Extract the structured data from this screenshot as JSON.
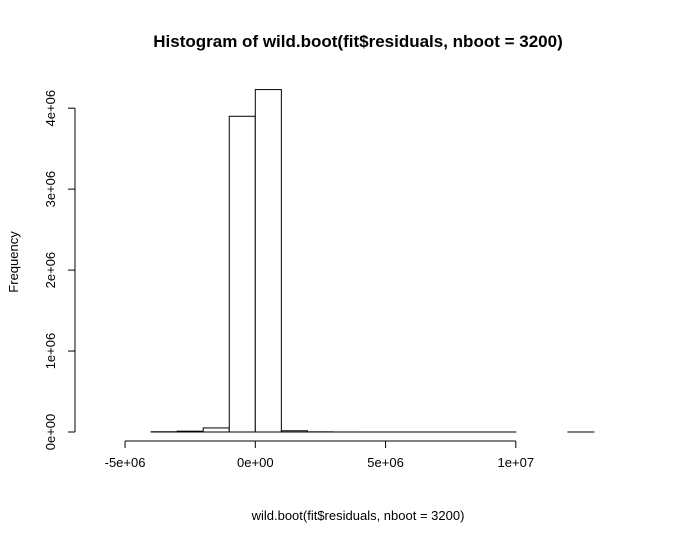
{
  "chart_data": {
    "type": "bar",
    "title": "Histogram of wild.boot(fit$residuals, nboot = 3200)",
    "xlabel": "wild.boot(fit$residuals, nboot = 3200)",
    "ylabel": "Frequency",
    "xlim": [
      -6000000,
      14000000
    ],
    "ylim": [
      0,
      4200000
    ],
    "bin_width": 1000000,
    "bin_starts": [
      -4000000,
      -3000000,
      -2000000,
      -1000000,
      0,
      1000000,
      2000000,
      3000000,
      4000000,
      5000000,
      6000000,
      7000000,
      8000000,
      9000000,
      10000000,
      11000000,
      12000000
    ],
    "values": [
      3000,
      10000,
      50000,
      3900000,
      4230000,
      15000,
      2000,
      200,
      50,
      10,
      5,
      2,
      1,
      1,
      0,
      0,
      1
    ],
    "x_ticks": [
      -5000000,
      0,
      5000000,
      10000000
    ],
    "x_tick_labels": [
      "-5e+06",
      "0e+00",
      "5e+06",
      "1e+07"
    ],
    "y_ticks": [
      0,
      1000000,
      2000000,
      3000000,
      4000000
    ],
    "y_tick_labels": [
      "0e+00",
      "1e+06",
      "2e+06",
      "3e+06",
      "4e+06"
    ],
    "grid": false,
    "legend": "none"
  }
}
